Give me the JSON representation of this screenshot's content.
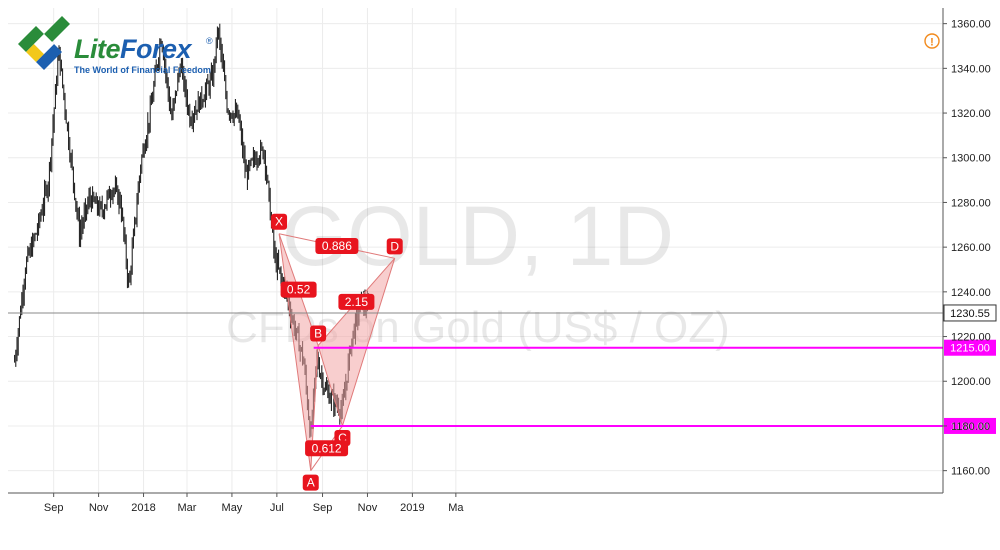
{
  "brand": {
    "name_part1": "Lite",
    "name_part2": "Forex",
    "registered": "®",
    "tagline": "The World of Financial Freedom",
    "logo_icon": "liteforex-logo-icon",
    "colors": {
      "green": "#2a8c3a",
      "blue": "#1c5fb0",
      "yellow": "#f2c81a"
    }
  },
  "alert_icon": {
    "name": "alert-circle-icon",
    "glyph": "!",
    "color": "#f28a1c"
  },
  "chart_data": {
    "type": "candlestick",
    "watermark": {
      "title": "GOLD, 1D",
      "subtitle": "CFDs on Gold (US$ / OZ)"
    },
    "y_axis": {
      "range": [
        1150,
        1367
      ],
      "ticks": [
        "1160.00",
        "1180.00",
        "1200.00",
        "1220.00",
        "1240.00",
        "1260.00",
        "1280.00",
        "1300.00",
        "1320.00",
        "1340.00",
        "1360.00"
      ],
      "tick_values": [
        1160,
        1180,
        1200,
        1220,
        1240,
        1260,
        1280,
        1300,
        1320,
        1340,
        1360
      ]
    },
    "x_axis": {
      "labels": [
        "Sep",
        "Nov",
        "2018",
        "Mar",
        "May",
        "Jul",
        "Sep",
        "Nov",
        "2019",
        "Ma"
      ],
      "label_positions": [
        "2017-09-01",
        "2017-11-01",
        "2018-01-01",
        "2018-03-01",
        "2018-05-01",
        "2018-07-01",
        "2018-09-01",
        "2018-11-01",
        "2019-01-01",
        "2019-03-01"
      ]
    },
    "price_profile": [
      [
        "2017-07-10",
        1209
      ],
      [
        "2017-07-25",
        1252
      ],
      [
        "2017-08-10",
        1268
      ],
      [
        "2017-08-25",
        1290
      ],
      [
        "2017-09-08",
        1348
      ],
      [
        "2017-09-20",
        1312
      ],
      [
        "2017-10-06",
        1266
      ],
      [
        "2017-10-20",
        1282
      ],
      [
        "2017-11-05",
        1276
      ],
      [
        "2017-11-20",
        1287
      ],
      [
        "2017-12-01",
        1280
      ],
      [
        "2017-12-12",
        1242
      ],
      [
        "2017-12-28",
        1297
      ],
      [
        "2018-01-10",
        1320
      ],
      [
        "2018-01-25",
        1355
      ],
      [
        "2018-02-08",
        1317
      ],
      [
        "2018-02-20",
        1342
      ],
      [
        "2018-03-05",
        1318
      ],
      [
        "2018-03-20",
        1326
      ],
      [
        "2018-04-05",
        1336
      ],
      [
        "2018-04-12",
        1358
      ],
      [
        "2018-04-25",
        1322
      ],
      [
        "2018-05-10",
        1318
      ],
      [
        "2018-05-20",
        1292
      ],
      [
        "2018-06-05",
        1302
      ],
      [
        "2018-06-14",
        1303
      ],
      [
        "2018-06-28",
        1255
      ],
      [
        "2018-07-13",
        1240
      ],
      [
        "2018-07-25",
        1224
      ],
      [
        "2018-08-06",
        1210
      ],
      [
        "2018-08-16",
        1175
      ],
      [
        "2018-08-24",
        1210
      ],
      [
        "2018-09-05",
        1196
      ],
      [
        "2018-09-14",
        1192
      ],
      [
        "2018-09-28",
        1187
      ],
      [
        "2018-10-10",
        1218
      ],
      [
        "2018-10-24",
        1236
      ],
      [
        "2018-11-03",
        1232
      ]
    ],
    "current_price": "1230.55",
    "current_price_value": 1230.55,
    "horizontal_levels": [
      {
        "label": "1215.00",
        "value": 1215,
        "from": "2018-08-20",
        "color": "#ff00ff"
      },
      {
        "label": "1180.00",
        "value": 1180,
        "from": "2018-08-16",
        "color": "#ff00ff"
      }
    ],
    "pattern": {
      "points": [
        {
          "label": "X",
          "date": "2018-07-04",
          "value": 1266,
          "label_pos": "above"
        },
        {
          "label": "A",
          "date": "2018-08-16",
          "value": 1160,
          "label_pos": "below"
        },
        {
          "label": "B",
          "date": "2018-08-26",
          "value": 1216,
          "label_pos": "above"
        },
        {
          "label": "C",
          "date": "2018-09-28",
          "value": 1180,
          "label_pos": "below"
        },
        {
          "label": "D",
          "date": "2018-12-08",
          "value": 1255,
          "label_pos": "above"
        }
      ],
      "ratios": [
        {
          "label": "0.52",
          "between": [
            "X",
            "B"
          ]
        },
        {
          "label": "0.612",
          "between": [
            "A",
            "C"
          ]
        },
        {
          "label": "2.15",
          "between": [
            "B",
            "D"
          ]
        },
        {
          "label": "0.886",
          "between": [
            "X",
            "D"
          ]
        }
      ],
      "fill_color": "#f2a6a6",
      "line_color": "#e07a7a",
      "label_color": "#e8141e"
    }
  }
}
